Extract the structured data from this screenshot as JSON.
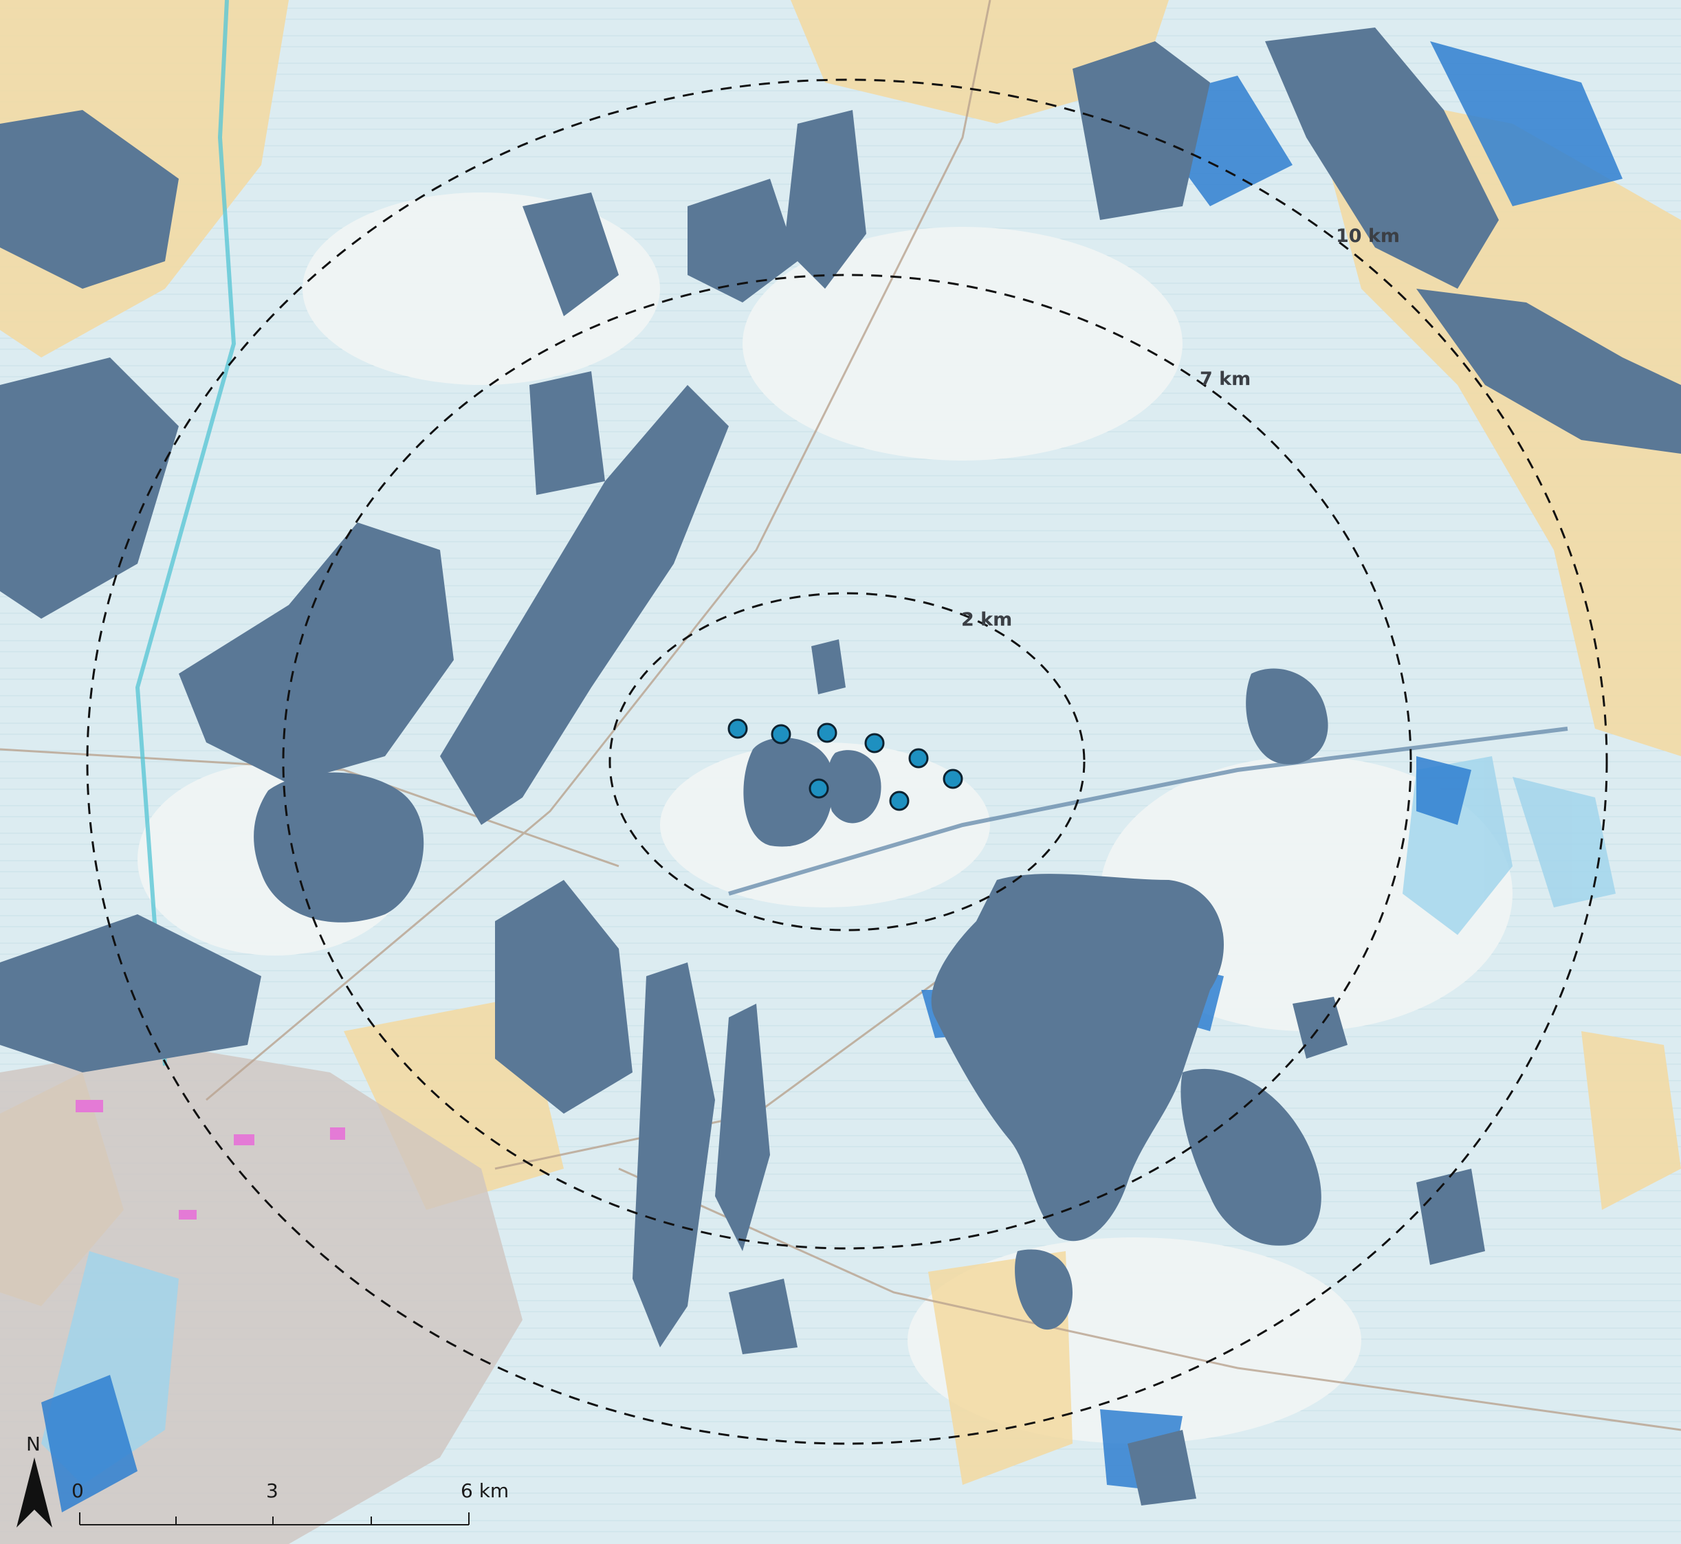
{
  "map": {
    "colors": {
      "base": "#dcecf1",
      "light_area": "#f4f7f6",
      "farmland": "#f3d9a0",
      "urban": "#cfc6c0",
      "visibility_dark": "#5a7896",
      "visibility_mid": "#2f7fd0",
      "visibility_light": "#9fd4ec",
      "turbine_fill": "#1e90c0",
      "turbine_stroke": "#0d2230",
      "ring_stroke": "#111111"
    },
    "ring_labels": {
      "r2": "2 km",
      "r7": "7 km",
      "r10": "10 km"
    },
    "turbines_count": 8,
    "scale_bar": {
      "ticks": [
        "0",
        "3",
        "6 km"
      ]
    },
    "north_arrow": {
      "label": "N"
    }
  }
}
